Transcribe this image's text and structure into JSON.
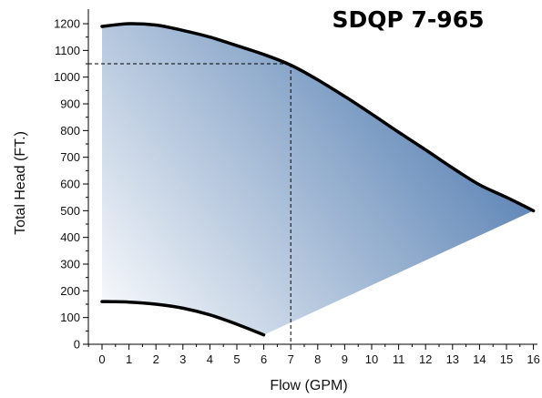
{
  "chart_data": {
    "type": "area",
    "title": "SDQP 7-965",
    "xlabel": "Flow (GPM)",
    "ylabel": "Total Head (FT.)",
    "xlim": [
      -0.5,
      16
    ],
    "ylim": [
      0,
      1250
    ],
    "x_ticks": [
      0,
      1,
      2,
      3,
      4,
      5,
      6,
      7,
      8,
      9,
      10,
      11,
      12,
      13,
      14,
      15,
      16
    ],
    "y_ticks": [
      0,
      100,
      200,
      300,
      400,
      500,
      600,
      700,
      800,
      900,
      1000,
      1100,
      1200
    ],
    "grid": false,
    "series": [
      {
        "role": "max-head-curve",
        "x": [
          0,
          1,
          2,
          3,
          4,
          5,
          6,
          7,
          8,
          9,
          10,
          11,
          12,
          13,
          14,
          15,
          16
        ],
        "y": [
          1190,
          1200,
          1195,
          1175,
          1150,
          1118,
          1085,
          1045,
          990,
          928,
          862,
          794,
          728,
          660,
          597,
          550,
          500
        ]
      },
      {
        "role": "min-head-curve",
        "x": [
          0,
          1,
          2,
          3,
          4,
          5,
          6
        ],
        "y": [
          160,
          158,
          150,
          135,
          110,
          75,
          35
        ]
      },
      {
        "role": "lower-boundary",
        "x": [
          6,
          16
        ],
        "y": [
          35,
          500
        ]
      }
    ],
    "annotations": [
      {
        "type": "reference-lines",
        "x": 7,
        "y": 1050
      }
    ],
    "fill_colors": {
      "light": "#ffffff",
      "dark": "#3f6ea8"
    },
    "line_color": "#000000"
  }
}
